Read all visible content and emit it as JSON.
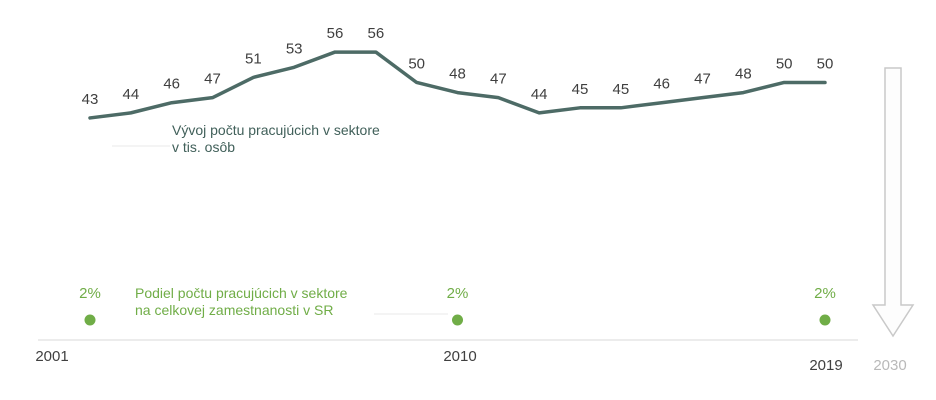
{
  "chart_data": {
    "type": "line",
    "title": "",
    "x": [
      2001,
      2002,
      2003,
      2004,
      2005,
      2006,
      2007,
      2008,
      2009,
      2010,
      2011,
      2012,
      2013,
      2014,
      2015,
      2016,
      2017,
      2018,
      2019
    ],
    "series": [
      {
        "name": "Vývoj počtu pracujúcich v sektore v tis. osôb",
        "type": "line",
        "color": "#4d6b66",
        "values": [
          43,
          44,
          46,
          47,
          51,
          53,
          56,
          56,
          50,
          48,
          47,
          44,
          45,
          45,
          46,
          47,
          48,
          50,
          50
        ]
      },
      {
        "name": "Podiel počtu pracujúcich v sektore na celkovej zamestnanosti v SR",
        "type": "point",
        "color": "#70ad47",
        "x": [
          2001,
          2010,
          2019
        ],
        "values": [
          2,
          2,
          2
        ],
        "value_labels": [
          "2%",
          "2%",
          "2%"
        ]
      }
    ],
    "xaxis": {
      "ticks": [
        "2001",
        "2010",
        "2019"
      ],
      "future_tick": "2030",
      "line_color": "#d9d9d9"
    },
    "ylim": [
      42,
      57
    ],
    "grid": false,
    "legend": "none"
  },
  "labels": {
    "line_caption_1": "Vývoj počtu pracujúcich v sektore",
    "line_caption_2": "v tis. osôb",
    "share_caption_1": "Podiel počtu pracujúcich v sektore",
    "share_caption_2": "na celkovej zamestnanosti v SR"
  },
  "axis": {
    "year_2001": "2001",
    "year_2010": "2010",
    "year_2019": "2019",
    "year_2030": "2030"
  },
  "colors": {
    "line": "#4d6b66",
    "green": "#70ad47",
    "data_label_text": "#3f3f3f",
    "muted_future": "#b9b9b9",
    "axis_line": "#d9d9d9",
    "arrow_stroke": "#c9c9c9"
  },
  "icons": {
    "down_arrow": "down-arrow-icon"
  }
}
